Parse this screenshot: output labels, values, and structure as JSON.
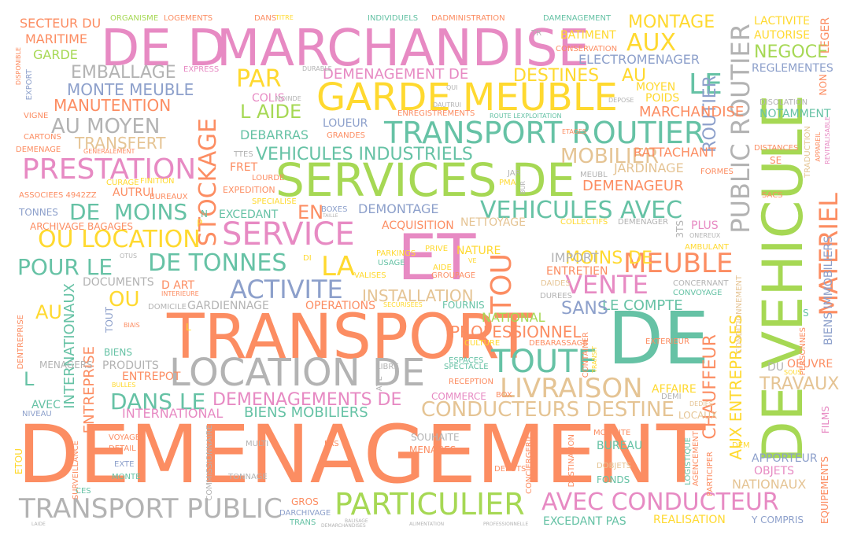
{
  "palette": {
    "orange": "#fc8d62",
    "teal": "#66c2a5",
    "blue": "#8da0cb",
    "pink": "#e78ac3",
    "green": "#a6d854",
    "yellow": "#ffd92f",
    "tan": "#e5c494",
    "grey": "#b3b3b3"
  },
  "words": {
    "demenagement": "DEMENAGEMENT",
    "de_big": "DE",
    "et": "ET",
    "transport": "TRANSPORT",
    "de_vehicule": "DE VEHICULE",
    "de_d": "DE D",
    "marchandise": "MARCHANDISE",
    "services_de": "SERVICES DE",
    "location_de": "LOCATION DE",
    "garde_meuble": "GARDE MEUBLE",
    "transport_routier": "TRANSPORT ROUTIER",
    "prestation": "PRESTATION",
    "service": "SERVICE",
    "particulier": "PARTICULIER",
    "livraison": "LIVRAISON",
    "toute": "TOUTE",
    "transport_public": "TRANSPORT PUBLIC",
    "avec_conducteur": "AVEC CONDUCTEUR",
    "public_routier": "PUBLIC ROUTIER",
    "materiel": "MATERIEL",
    "meuble": "MEUBLE",
    "vente": "VENTE",
    "activite": "ACTIVITE",
    "stockage": "STOCKAGE",
    "de_tonnes": "DE TONNES",
    "ou_location": "OU LOCATION",
    "pour_le": "POUR LE",
    "dans_le": "DANS LE",
    "tou": "TOU",
    "la": "LA",
    "vehicules_avec": "VEHICULES AVEC",
    "moins": "MOINS",
    "de_small": "DE",
    "en": "EN",
    "conducteurs_destine": "CONDUCTEURS DESTINE",
    "demenagements_de": "DEMENAGEMENTS DE",
    "au_moyen": "AU MOYEN",
    "vehicules_industriels": "VEHICULES INDUSTRIELS",
    "par": "PAR",
    "l_aide": "L AIDE",
    "le": "LE",
    "aux": "AUX",
    "montage": "MONTAGE",
    "mobilier": "MOBILIER",
    "negoce": "NEGOCE",
    "routier": "ROUTIER",
    "demenagement_de": "DEMENAGEMENT DE",
    "destines": "DESTINES",
    "au": "AU",
    "emballage": "EMBALLAGE",
    "monte_meuble": "MONTE MEUBLE",
    "manutention": "MANUTENTION",
    "transfert": "TRANSFERT",
    "secteur_du": "SECTEUR DU",
    "maritime": "MARITIME",
    "garde": "GARDE",
    "ou": "OU",
    "au_left": "AU",
    "l_left": "L",
    "moins_de": "MOINS DE",
    "chauffeur": "CHAUFFEUR",
    "travaux": "TRAVAUX",
    "aux_entreprises": "AUX ENTREPRISES",
    "biens_mobiliers": "BIENS MOBILIERS",
    "international": "INTERNATIONAL",
    "internationaux": "INTERNATIONAUX",
    "entreprise": "ENTREPRISE",
    "professionnel": "PROFESSIONNEL",
    "installation": "INSTALLATION",
    "gardiennage": "GARDIENNAGE",
    "le_compte": "LE COMPTE",
    "sans": "SANS",
    "national": "NATIONAL",
    "demenageur": "DEMENAGEUR",
    "jardinage": "JARDINAGE",
    "rattachant": "RATTACHANT",
    "marchandise_small": "MARCHANDISE",
    "electromenager": "ELECTROMENAGER",
    "reglementes": "REGLEMENTES",
    "notamment": "NOTAMMENT",
    "batiment": "BATIMENT",
    "lactivite": "LACTIVITE",
    "autorise": "AUTORISE",
    "leger": "LEGER",
    "poids": "POIDS",
    "moyen": "MOYEN",
    "loueur": "LOUEUR",
    "debarras": "DEBARRAS",
    "colis": "COLIS",
    "demontage": "DEMONTAGE",
    "acquisition": "ACQUISITION",
    "nettoyage": "NETTOYAGE",
    "import": "IMPORT",
    "entretien": "ENTRETIEN",
    "nature": "NATURE",
    "excedant": "EXCEDANT",
    "fret": "FRET",
    "expedition": "EXPEDITION",
    "archivage_bagages": "ARCHIVAGE BAGAGES",
    "tonnes": "TONNES",
    "associees": "ASSOCIEES 4942ZZ",
    "autrui": "AUTRUI",
    "bureaux": "BUREAUX",
    "operations": "OPERATIONS",
    "documents": "DOCUMENTS",
    "d_art": "D ART",
    "domicile": "DOMICILE",
    "produits": "PRODUITS",
    "entrepot": "ENTREPOT",
    "biens": "BIENS",
    "menagers": "MENAGERS",
    "tout": "TOUT",
    "avec": "AVEC",
    "affaire": "AFFAIRE",
    "locaux": "LOCAUX",
    "oeuvre": "OEUVRE",
    "du": "DU",
    "menages": "MENAGES",
    "souhaite": "SOUHAITE",
    "bureau": "BUREAU",
    "mobilite": "MOBILITE",
    "apporteur": "APPORTEUR",
    "objets": "OBJETS",
    "nationaux": "NATIONAUX",
    "fonds": "FONDS",
    "dobjets": "DOBJETS",
    "realisation": "REALISATION",
    "y_compris": "Y COMPRIS",
    "excedant_pas": "EXCEDANT PAS",
    "gros": "GROS",
    "darchivage": "DARCHIVAGE",
    "trans": "TRANS",
    "vetements": "VOYAGES",
    "detail": "DETAIL",
    "multi": "MULTI",
    "exte": "EXTE",
    "monte": "MONTE",
    "tonnage": "TONNAGE",
    "commissionnaire": "COMMISSIONNAIRE",
    "equipements": "EQUIPEMENTS",
    "films": "FILMS",
    "biens_immobiliers": "BIENS IMMOBILIERS",
    "agencement": "AGENCEMENT",
    "conditionnement": "CONDITIONNEMENT",
    "concernant": "CONCERNANT",
    "convoyage": "CONVOYAGE",
    "ambulant": "AMBULANT",
    "plus": "PLUS",
    "plus_small": "PLUS",
    "commerce": "COMMERCE",
    "espaces": "ESPACES",
    "spectacle": "SPECTACLE",
    "reception": "RECEPTION",
    "box": "BOX",
    "fournis": "FOURNIS",
    "durees": "DUREES",
    "daides": "DAIDES",
    "culture": "CULTURE",
    "debarassage": "DEBARASSAGE",
    "valises": "VALISES",
    "groupage": "GROUPAGE",
    "aide": "AIDE",
    "prive": "PRIVE",
    "parkings": "PARKINGS",
    "usage": "USAGE",
    "boxes": "BOXES",
    "taille": "TAILLE",
    "ttes": "TTES",
    "lourde": "LOURDE",
    "specialise": "SPECIALISE",
    "grandes": "GRANDES",
    "enregistrements": "ENREGISTREMENTS",
    "route_lexploitation": "ROUTE LEXPLOITATION",
    "organisme": "ORGANISME",
    "logements": "LOGEMENTS",
    "individuels": "INDIVIDUELS",
    "dadministration": "DADMINISTRATION",
    "dans": "DANS",
    "titre": "TITRE",
    "damenagement": "DAMENAGEMENT",
    "conservation": "CONSERVATION",
    "dechargement": "DISOLATION",
    "depose": "DEPOSE",
    "cartons": "CARTONS",
    "demenage": "DEMENAGE",
    "generalement": "GENERALEMENT",
    "vigne": "VIGNE",
    "export": "EXPORT",
    "disponible": "DISPONIBLE",
    "courage": "CURAGE",
    "finition": "FINITION",
    "distances": "DISTANCES",
    "se": "SE",
    "formes": "FORMES",
    "sacs": "SACS",
    "pieces": "PIECES",
    "tr": "TR",
    "n": "N",
    "express": "EXPRESS",
    "durable": "DURABLE",
    "moinde": "MOINDE",
    "jar": "JAR",
    "pma": "PMA",
    "bur": "BUR",
    "eta": "ETAGES",
    "meubl": "MEUBL",
    "demenag_small": "DEMENAGER",
    "collectifs": "COLLECTIFS",
    "onereux": "ONEREUX",
    "non": "NON",
    "traduction": "TRADUCTION",
    "appareil": "APPAREIL",
    "revitalisable": "REVITALISABLE",
    "di": "DI",
    "otus": "OTUS",
    "l_small": "L",
    "surveillance": "SURVEILLANCE",
    "etou": "ETOU",
    "ces": "CES",
    "niveau": "NIVEAU",
    "bulles": "BULLES",
    "biais": "BIAIS",
    "interieure": "INTERIEURE",
    "securisees": "SECURISEES",
    "dentreprise": "DENTREPRISE",
    "logistique": "LOGISTIQUE",
    "destination": "DESTINATION",
    "depots": "DEPOTS",
    "conciergerie": "CONCIERGERIE",
    "participer": "PARTICIPER",
    "dem": "DEM",
    "personnes": "PERSONNES",
    "container": "CONTAINER",
    "transit": "TRANSIT",
    "pas": "PAS",
    "libre": "LIBRE",
    "ave": "AVE",
    "dedies": "DEDIES",
    "demi": "DEMI",
    "exterieur": "EXTERIEUR",
    "sous": "SOUS",
    "ve": "VE",
    "s": "S",
    "p": "P",
    "dans_small": "DANS",
    "cuisine": "CUISINE",
    "stock": "3TS",
    "qui": "QUI",
    "dautrui": "DAUTRUI",
    "dechets": "DECHETS",
    "balisage": "BALISAGE",
    "alimentation": "ALIMENTATION",
    "professionnelle": "PROFESSIONNELLE",
    "demarchandises": "DEMARCHANDISES",
    "laide": "LAIDE"
  }
}
